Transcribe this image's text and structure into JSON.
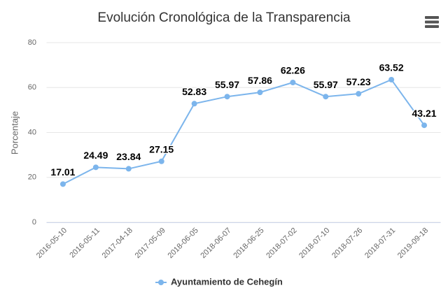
{
  "chart_data": {
    "type": "line",
    "title": "Evolución Cronológica de la Transparencia",
    "y_label": "Porcentaje",
    "categories": [
      "2016-05-10",
      "2016-05-11",
      "2017-04-18",
      "2017-05-09",
      "2018-06-05",
      "2018-06-07",
      "2018-06-25",
      "2018-07-02",
      "2018-07-10",
      "2018-07-26",
      "2018-07-31",
      "2019-09-18"
    ],
    "series": [
      {
        "name": "Ayuntamiento de Cehegín",
        "color": "#7cb5ec",
        "values": [
          17.01,
          24.49,
          23.84,
          27.15,
          52.83,
          55.97,
          57.86,
          62.26,
          55.97,
          57.23,
          63.52,
          43.21
        ]
      }
    ],
    "ylim": [
      0,
      80
    ],
    "yticks": [
      0,
      20,
      40,
      60,
      80
    ],
    "grid": true,
    "legend": "bottom"
  }
}
